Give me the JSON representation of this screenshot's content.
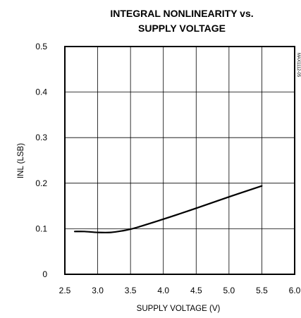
{
  "chart_data": {
    "type": "line",
    "title": [
      "INTEGRAL NONLINEARITY vs.",
      "SUPPLY VOLTAGE"
    ],
    "xlabel": "SUPPLY VOLTAGE (V)",
    "ylabel": "INL (LSB)",
    "xlim": [
      2.5,
      6.0
    ],
    "ylim": [
      0,
      0.5
    ],
    "x_ticks": [
      "2.5",
      "3.0",
      "3.5",
      "4.0",
      "4.5",
      "5.0",
      "5.5",
      "6.0"
    ],
    "y_ticks": [
      "0",
      "0.1",
      "0.2",
      "0.3",
      "0.4",
      "0.5"
    ],
    "grid": true,
    "figure_code": "MAX1112-05",
    "series": [
      {
        "x": [
          2.65,
          2.8,
          3.0,
          3.2,
          3.4,
          3.5,
          3.6,
          4.0,
          4.5,
          5.0,
          5.5
        ],
        "y": [
          0.094,
          0.094,
          0.092,
          0.092,
          0.096,
          0.099,
          0.103,
          0.121,
          0.145,
          0.17,
          0.194
        ]
      }
    ],
    "colors": {
      "line": "#000000",
      "grid": "#000000",
      "frame": "#000000"
    }
  }
}
